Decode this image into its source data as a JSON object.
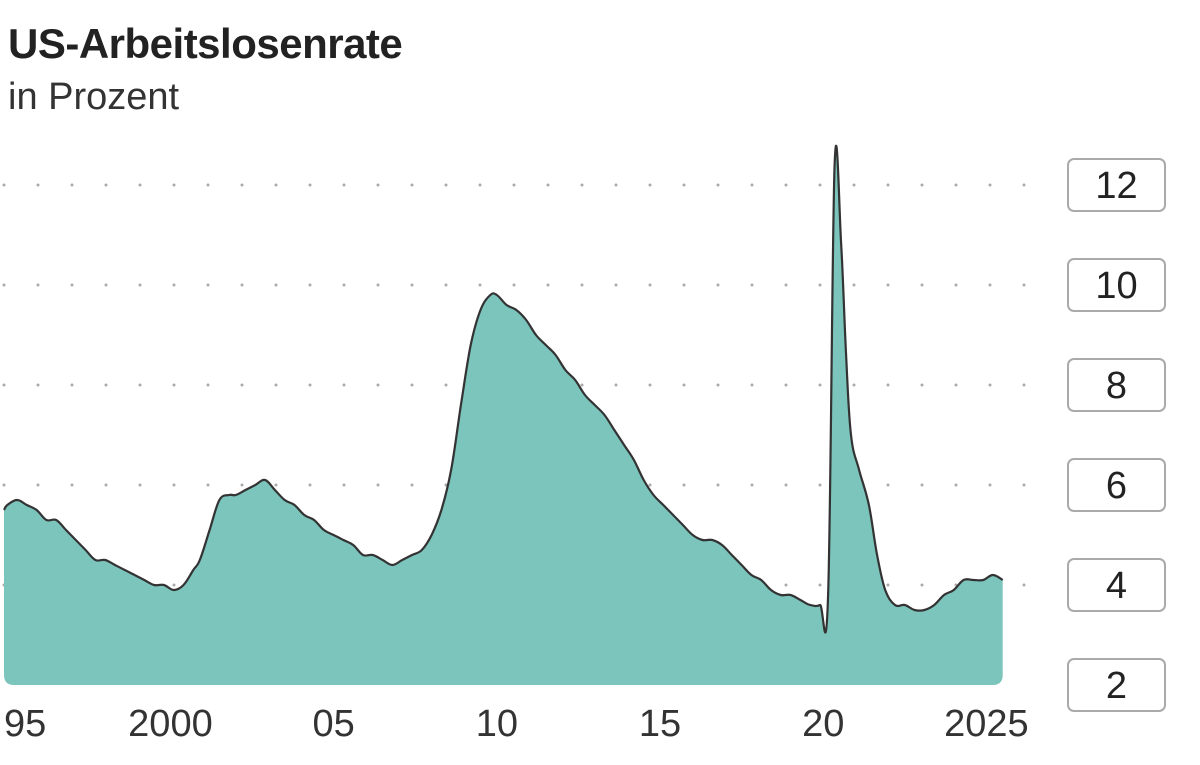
{
  "header": {
    "title": "US-Arbeitslosenrate",
    "subtitle": "in Prozent"
  },
  "colors": {
    "area_fill": "#7cc5bc",
    "line": "#333333",
    "grid_dots": "#aaaaaa"
  },
  "chart_data": {
    "type": "area",
    "title": "US-Arbeitslosenrate",
    "subtitle": "in Prozent",
    "xlabel": "",
    "ylabel": "",
    "xlim": [
      1994.9,
      2025.6
    ],
    "ylim": [
      2,
      12
    ],
    "yticks": [
      2,
      4,
      6,
      8,
      10,
      12
    ],
    "ytick_labels": [
      "2",
      "4",
      "6",
      "8",
      "10",
      "12"
    ],
    "xticks": [
      1995,
      2000,
      2005,
      2010,
      2015,
      2020,
      2025
    ],
    "xtick_labels": [
      "95",
      "2000",
      "05",
      "10",
      "15",
      "20",
      "2025"
    ],
    "grid": "dotted horizontal",
    "axis_position": "right",
    "series": [
      {
        "x": [
          1994.9,
          1995.0,
          1995.3,
          1995.6,
          1995.9,
          1996.2,
          1996.5,
          1996.8,
          1997.1,
          1997.4,
          1997.7,
          1998.0,
          1998.3,
          1998.6,
          1998.9,
          1999.2,
          1999.5,
          1999.8,
          2000.1,
          2000.4,
          2000.7,
          2000.9,
          2001.2,
          2001.5,
          2001.8,
          2002.0,
          2002.3,
          2002.6,
          2002.9,
          2003.2,
          2003.5,
          2003.8,
          2004.1,
          2004.4,
          2004.7,
          2005.0,
          2005.3,
          2005.6,
          2005.9,
          2006.2,
          2006.5,
          2006.8,
          2007.1,
          2007.4,
          2007.7,
          2008.0,
          2008.3,
          2008.6,
          2008.9,
          2009.2,
          2009.5,
          2009.8,
          2010.0,
          2010.3,
          2010.6,
          2010.9,
          2011.2,
          2011.5,
          2011.8,
          2012.1,
          2012.4,
          2012.7,
          2013.0,
          2013.3,
          2013.6,
          2013.9,
          2014.2,
          2014.5,
          2014.8,
          2015.1,
          2015.4,
          2015.7,
          2016.0,
          2016.3,
          2016.6,
          2016.9,
          2017.2,
          2017.5,
          2017.8,
          2018.1,
          2018.4,
          2018.7,
          2019.0,
          2019.3,
          2019.6,
          2019.9,
          2020.15,
          2020.35,
          2020.55,
          2020.7,
          2020.85,
          2021.1,
          2021.4,
          2021.65,
          2021.9,
          2022.2,
          2022.5,
          2022.8,
          2023.1,
          2023.4,
          2023.7,
          2024.0,
          2024.3,
          2024.6,
          2024.9,
          2025.2,
          2025.5
        ],
        "values": [
          5.5,
          5.6,
          5.7,
          5.6,
          5.5,
          5.3,
          5.3,
          5.1,
          4.9,
          4.7,
          4.5,
          4.5,
          4.4,
          4.3,
          4.2,
          4.1,
          4.0,
          4.0,
          3.9,
          4.0,
          4.3,
          4.5,
          5.1,
          5.7,
          5.8,
          5.8,
          5.9,
          6.0,
          6.1,
          5.9,
          5.7,
          5.6,
          5.4,
          5.3,
          5.1,
          5.0,
          4.9,
          4.8,
          4.6,
          4.6,
          4.5,
          4.4,
          4.5,
          4.6,
          4.7,
          5.0,
          5.5,
          6.3,
          7.6,
          8.8,
          9.5,
          9.8,
          9.8,
          9.6,
          9.5,
          9.3,
          9.0,
          8.8,
          8.6,
          8.3,
          8.1,
          7.8,
          7.6,
          7.4,
          7.1,
          6.8,
          6.5,
          6.1,
          5.8,
          5.6,
          5.4,
          5.2,
          5.0,
          4.9,
          4.9,
          4.8,
          4.6,
          4.4,
          4.2,
          4.1,
          3.9,
          3.8,
          3.8,
          3.7,
          3.6,
          3.6,
          3.8,
          12.4,
          10.8,
          8.6,
          7.0,
          6.3,
          5.6,
          4.6,
          3.9,
          3.6,
          3.6,
          3.5,
          3.5,
          3.6,
          3.8,
          3.9,
          4.1,
          4.1,
          4.1,
          4.2,
          4.1
        ]
      }
    ]
  }
}
